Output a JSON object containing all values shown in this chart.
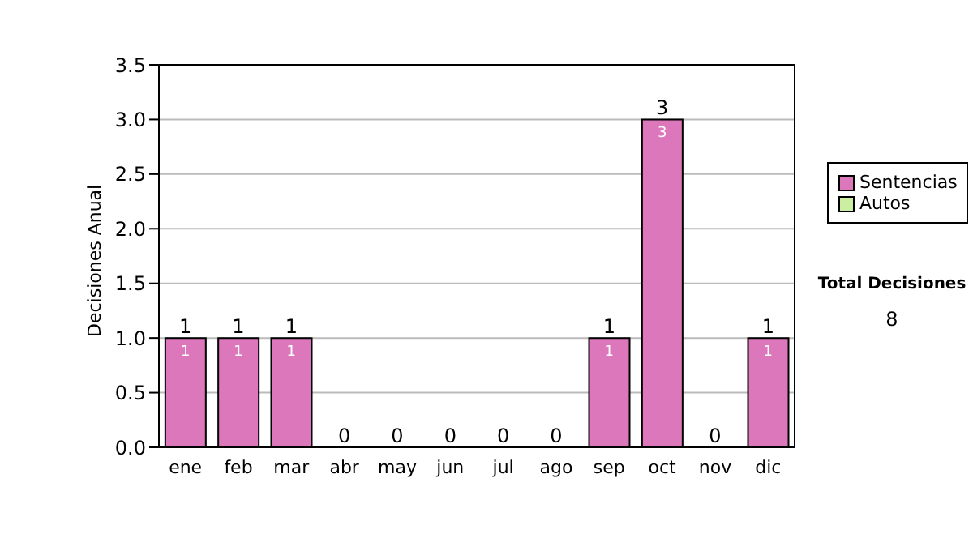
{
  "chart_data": {
    "type": "bar",
    "stacked": true,
    "ylabel": "Decisiones Anual",
    "categories": [
      "ene",
      "feb",
      "mar",
      "abr",
      "may",
      "jun",
      "jul",
      "ago",
      "sep",
      "oct",
      "nov",
      "dic"
    ],
    "series": [
      {
        "name": "Sentencias",
        "color": "#dd77bb",
        "values": [
          1,
          1,
          1,
          0,
          0,
          0,
          0,
          0,
          1,
          3,
          0,
          1
        ],
        "value_labels": [
          "1",
          "1",
          "1",
          null,
          null,
          null,
          null,
          null,
          "1",
          "3",
          null,
          "1"
        ]
      },
      {
        "name": "Autos",
        "color": "#cceea0",
        "values": [
          0,
          0,
          0,
          0,
          0,
          0,
          0,
          0,
          0,
          0,
          0,
          0
        ]
      }
    ],
    "totals": [
      "1",
      "1",
      "1",
      "0",
      "0",
      "0",
      "0",
      "0",
      "1",
      "3",
      "0",
      "1"
    ],
    "ylim": [
      0,
      3.5
    ],
    "yticks": [
      {
        "value": 0,
        "label": "0.0"
      },
      {
        "value": 0.5,
        "label": "0.5"
      },
      {
        "value": 1,
        "label": "1.0"
      },
      {
        "value": 1.5,
        "label": "1.5"
      },
      {
        "value": 2,
        "label": "2.0"
      },
      {
        "value": 2.5,
        "label": "2.5"
      },
      {
        "value": 3,
        "label": "3.0"
      },
      {
        "value": 3.5,
        "label": "3.5"
      }
    ],
    "grid": "y",
    "legend": "right",
    "annotations": [
      "Total Decisiones",
      "8"
    ]
  }
}
